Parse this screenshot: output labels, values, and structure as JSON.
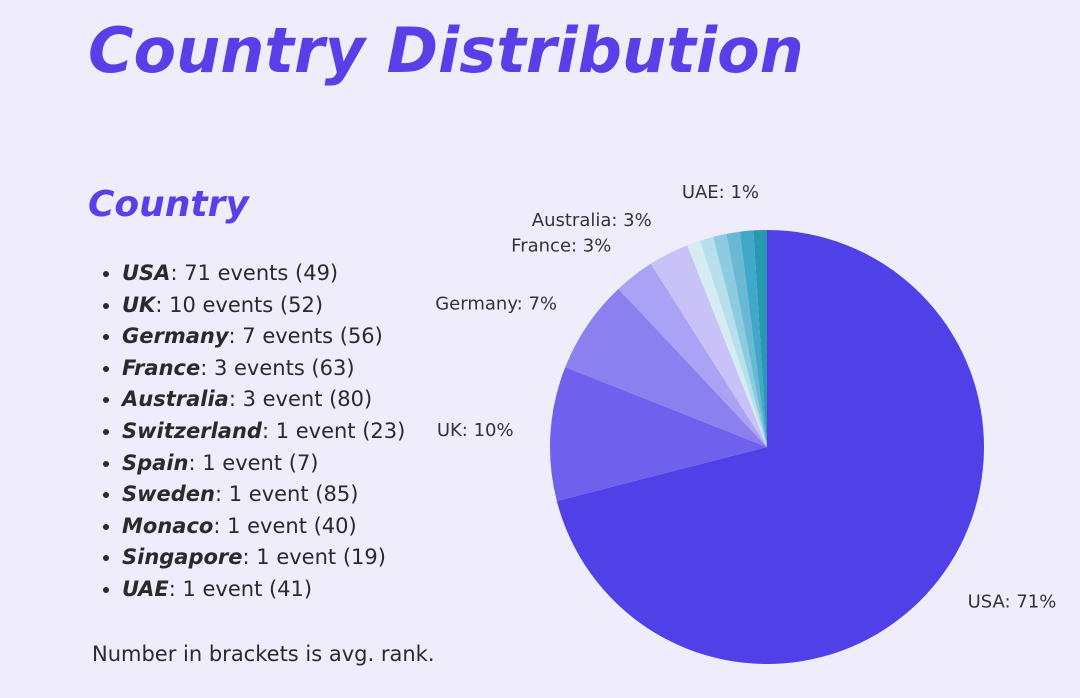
{
  "title": "Country Distribution",
  "subtitle": "Country",
  "list": [
    {
      "country": "USA",
      "text": ": 71 events (49)"
    },
    {
      "country": "UK",
      "text": ": 10 events (52)"
    },
    {
      "country": "Germany",
      "text": ": 7 events (56)"
    },
    {
      "country": "France",
      "text": ": 3 events (63)"
    },
    {
      "country": "Australia",
      "text": ": 3 event (80)"
    },
    {
      "country": "Switzerland",
      "text": ": 1 event (23)"
    },
    {
      "country": "Spain",
      "text": ": 1 event (7)"
    },
    {
      "country": "Sweden",
      "text": ": 1 event (85)"
    },
    {
      "country": "Monaco",
      "text": ": 1 event (40)"
    },
    {
      "country": "Singapore",
      "text": ": 1 event (19)"
    },
    {
      "country": "UAE",
      "text": ": 1 event (41)"
    }
  ],
  "note": "Number in brackets is avg. rank.",
  "chart_data": {
    "type": "pie",
    "values": [
      71,
      10,
      7,
      3,
      3,
      1,
      1,
      1,
      1,
      1,
      1
    ],
    "value_labels": [
      "USA: 71%",
      "UK: 10%",
      "Germany: 7%",
      "France: 3%",
      "Australia: 3%",
      null,
      null,
      null,
      null,
      null,
      "UAE: 1%"
    ],
    "colors": [
      "#5040e8",
      "#7060ee",
      "#8c80f0",
      "#aaa2f4",
      "#c8c2f8",
      "#d4ecf2",
      "#b8e0ec",
      "#8ccce0",
      "#6ab8d4",
      "#40a8c8",
      "#2898b0"
    ]
  }
}
